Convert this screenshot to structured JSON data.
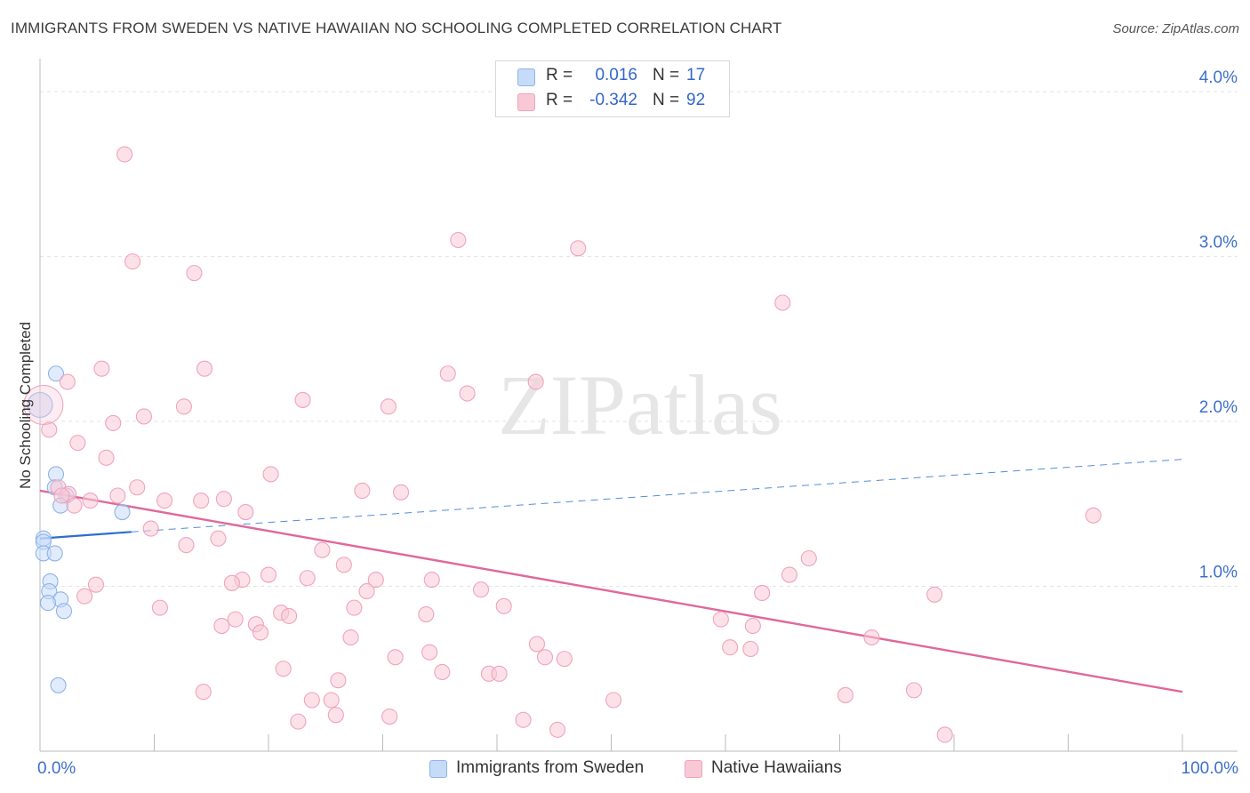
{
  "chart_data": {
    "type": "scatter",
    "title": "IMMIGRANTS FROM SWEDEN VS NATIVE HAWAIIAN NO SCHOOLING COMPLETED CORRELATION CHART",
    "source": "Source: ZipAtlas.com",
    "xlabel": "",
    "ylabel": "No Schooling Completed",
    "xlim": [
      0,
      100
    ],
    "ylim": [
      0,
      4.2
    ],
    "x_tick_labels": [
      "0.0%",
      "100.0%"
    ],
    "y_ticks": [
      {
        "value": 1.0,
        "label": "1.0%"
      },
      {
        "value": 2.0,
        "label": "2.0%"
      },
      {
        "value": 3.0,
        "label": "3.0%"
      },
      {
        "value": 4.0,
        "label": "4.0%"
      }
    ],
    "watermark": "ZIPatlas",
    "series": [
      {
        "name": "Immigrants from Sweden",
        "color": "#8fb4e8",
        "fill": "#c6dbf7",
        "line_color": "#2b6fcf",
        "r_label": "R =",
        "r_value": "0.016",
        "n_label": "N =",
        "n_value": "17",
        "trend": {
          "x0": 0,
          "y0": 1.29,
          "x1": 8,
          "y1": 1.33,
          "dash_x1": 100,
          "dash_y1": 1.77
        },
        "points": [
          [
            0.0,
            2.1
          ],
          [
            1.4,
            2.29
          ],
          [
            1.4,
            1.68
          ],
          [
            1.3,
            1.6
          ],
          [
            2.3,
            1.55
          ],
          [
            1.8,
            1.49
          ],
          [
            7.2,
            1.45
          ],
          [
            0.3,
            1.29
          ],
          [
            0.3,
            1.27
          ],
          [
            0.3,
            1.2
          ],
          [
            1.3,
            1.2
          ],
          [
            0.9,
            1.03
          ],
          [
            0.8,
            0.97
          ],
          [
            1.8,
            0.92
          ],
          [
            0.7,
            0.9
          ],
          [
            2.1,
            0.85
          ],
          [
            1.6,
            0.4
          ]
        ]
      },
      {
        "name": "Native Hawaiians",
        "color": "#f0a3bb",
        "fill": "#f9c8d7",
        "line_color": "#e0689a",
        "r_label": "R =",
        "r_value": "-0.342",
        "n_label": "N =",
        "n_value": "92",
        "trend": {
          "x0": 0,
          "y0": 1.58,
          "x1": 100,
          "y1": 0.36
        },
        "points": [
          [
            7.4,
            3.62
          ],
          [
            8.1,
            2.97
          ],
          [
            13.5,
            2.9
          ],
          [
            36.6,
            3.1
          ],
          [
            47.1,
            3.05
          ],
          [
            65.0,
            2.72
          ],
          [
            5.4,
            2.32
          ],
          [
            14.4,
            2.32
          ],
          [
            2.4,
            2.24
          ],
          [
            35.7,
            2.29
          ],
          [
            43.4,
            2.24
          ],
          [
            37.4,
            2.17
          ],
          [
            23.0,
            2.13
          ],
          [
            12.6,
            2.09
          ],
          [
            30.5,
            2.09
          ],
          [
            9.1,
            2.03
          ],
          [
            6.4,
            1.99
          ],
          [
            0.8,
            1.95
          ],
          [
            3.3,
            1.87
          ],
          [
            5.8,
            1.78
          ],
          [
            20.2,
            1.68
          ],
          [
            1.6,
            1.6
          ],
          [
            2.5,
            1.56
          ],
          [
            8.5,
            1.6
          ],
          [
            1.9,
            1.55
          ],
          [
            6.8,
            1.55
          ],
          [
            10.9,
            1.52
          ],
          [
            14.1,
            1.52
          ],
          [
            16.1,
            1.53
          ],
          [
            28.2,
            1.58
          ],
          [
            31.6,
            1.57
          ],
          [
            3.0,
            1.49
          ],
          [
            18.0,
            1.45
          ],
          [
            92.2,
            1.43
          ],
          [
            4.4,
            1.52
          ],
          [
            9.7,
            1.35
          ],
          [
            15.6,
            1.29
          ],
          [
            12.8,
            1.25
          ],
          [
            24.7,
            1.22
          ],
          [
            26.6,
            1.13
          ],
          [
            67.3,
            1.17
          ],
          [
            65.6,
            1.07
          ],
          [
            17.7,
            1.04
          ],
          [
            20.0,
            1.07
          ],
          [
            23.4,
            1.05
          ],
          [
            29.4,
            1.04
          ],
          [
            34.3,
            1.04
          ],
          [
            16.8,
            1.02
          ],
          [
            4.9,
            1.01
          ],
          [
            28.6,
            0.97
          ],
          [
            38.6,
            0.98
          ],
          [
            63.2,
            0.96
          ],
          [
            78.3,
            0.95
          ],
          [
            3.9,
            0.94
          ],
          [
            10.5,
            0.87
          ],
          [
            27.5,
            0.87
          ],
          [
            40.6,
            0.88
          ],
          [
            21.1,
            0.84
          ],
          [
            33.8,
            0.83
          ],
          [
            21.8,
            0.82
          ],
          [
            17.1,
            0.8
          ],
          [
            59.6,
            0.8
          ],
          [
            15.9,
            0.76
          ],
          [
            18.9,
            0.77
          ],
          [
            19.3,
            0.72
          ],
          [
            62.4,
            0.76
          ],
          [
            27.2,
            0.69
          ],
          [
            72.8,
            0.69
          ],
          [
            43.5,
            0.65
          ],
          [
            60.4,
            0.63
          ],
          [
            62.2,
            0.62
          ],
          [
            34.1,
            0.6
          ],
          [
            31.1,
            0.57
          ],
          [
            44.2,
            0.57
          ],
          [
            45.9,
            0.56
          ],
          [
            21.3,
            0.5
          ],
          [
            35.2,
            0.48
          ],
          [
            39.3,
            0.47
          ],
          [
            40.2,
            0.47
          ],
          [
            26.1,
            0.43
          ],
          [
            14.3,
            0.36
          ],
          [
            70.5,
            0.34
          ],
          [
            76.5,
            0.37
          ],
          [
            23.8,
            0.31
          ],
          [
            25.5,
            0.31
          ],
          [
            50.2,
            0.31
          ],
          [
            25.9,
            0.22
          ],
          [
            30.6,
            0.21
          ],
          [
            42.3,
            0.19
          ],
          [
            22.6,
            0.18
          ],
          [
            45.3,
            0.13
          ],
          [
            79.2,
            0.1
          ]
        ]
      }
    ]
  }
}
